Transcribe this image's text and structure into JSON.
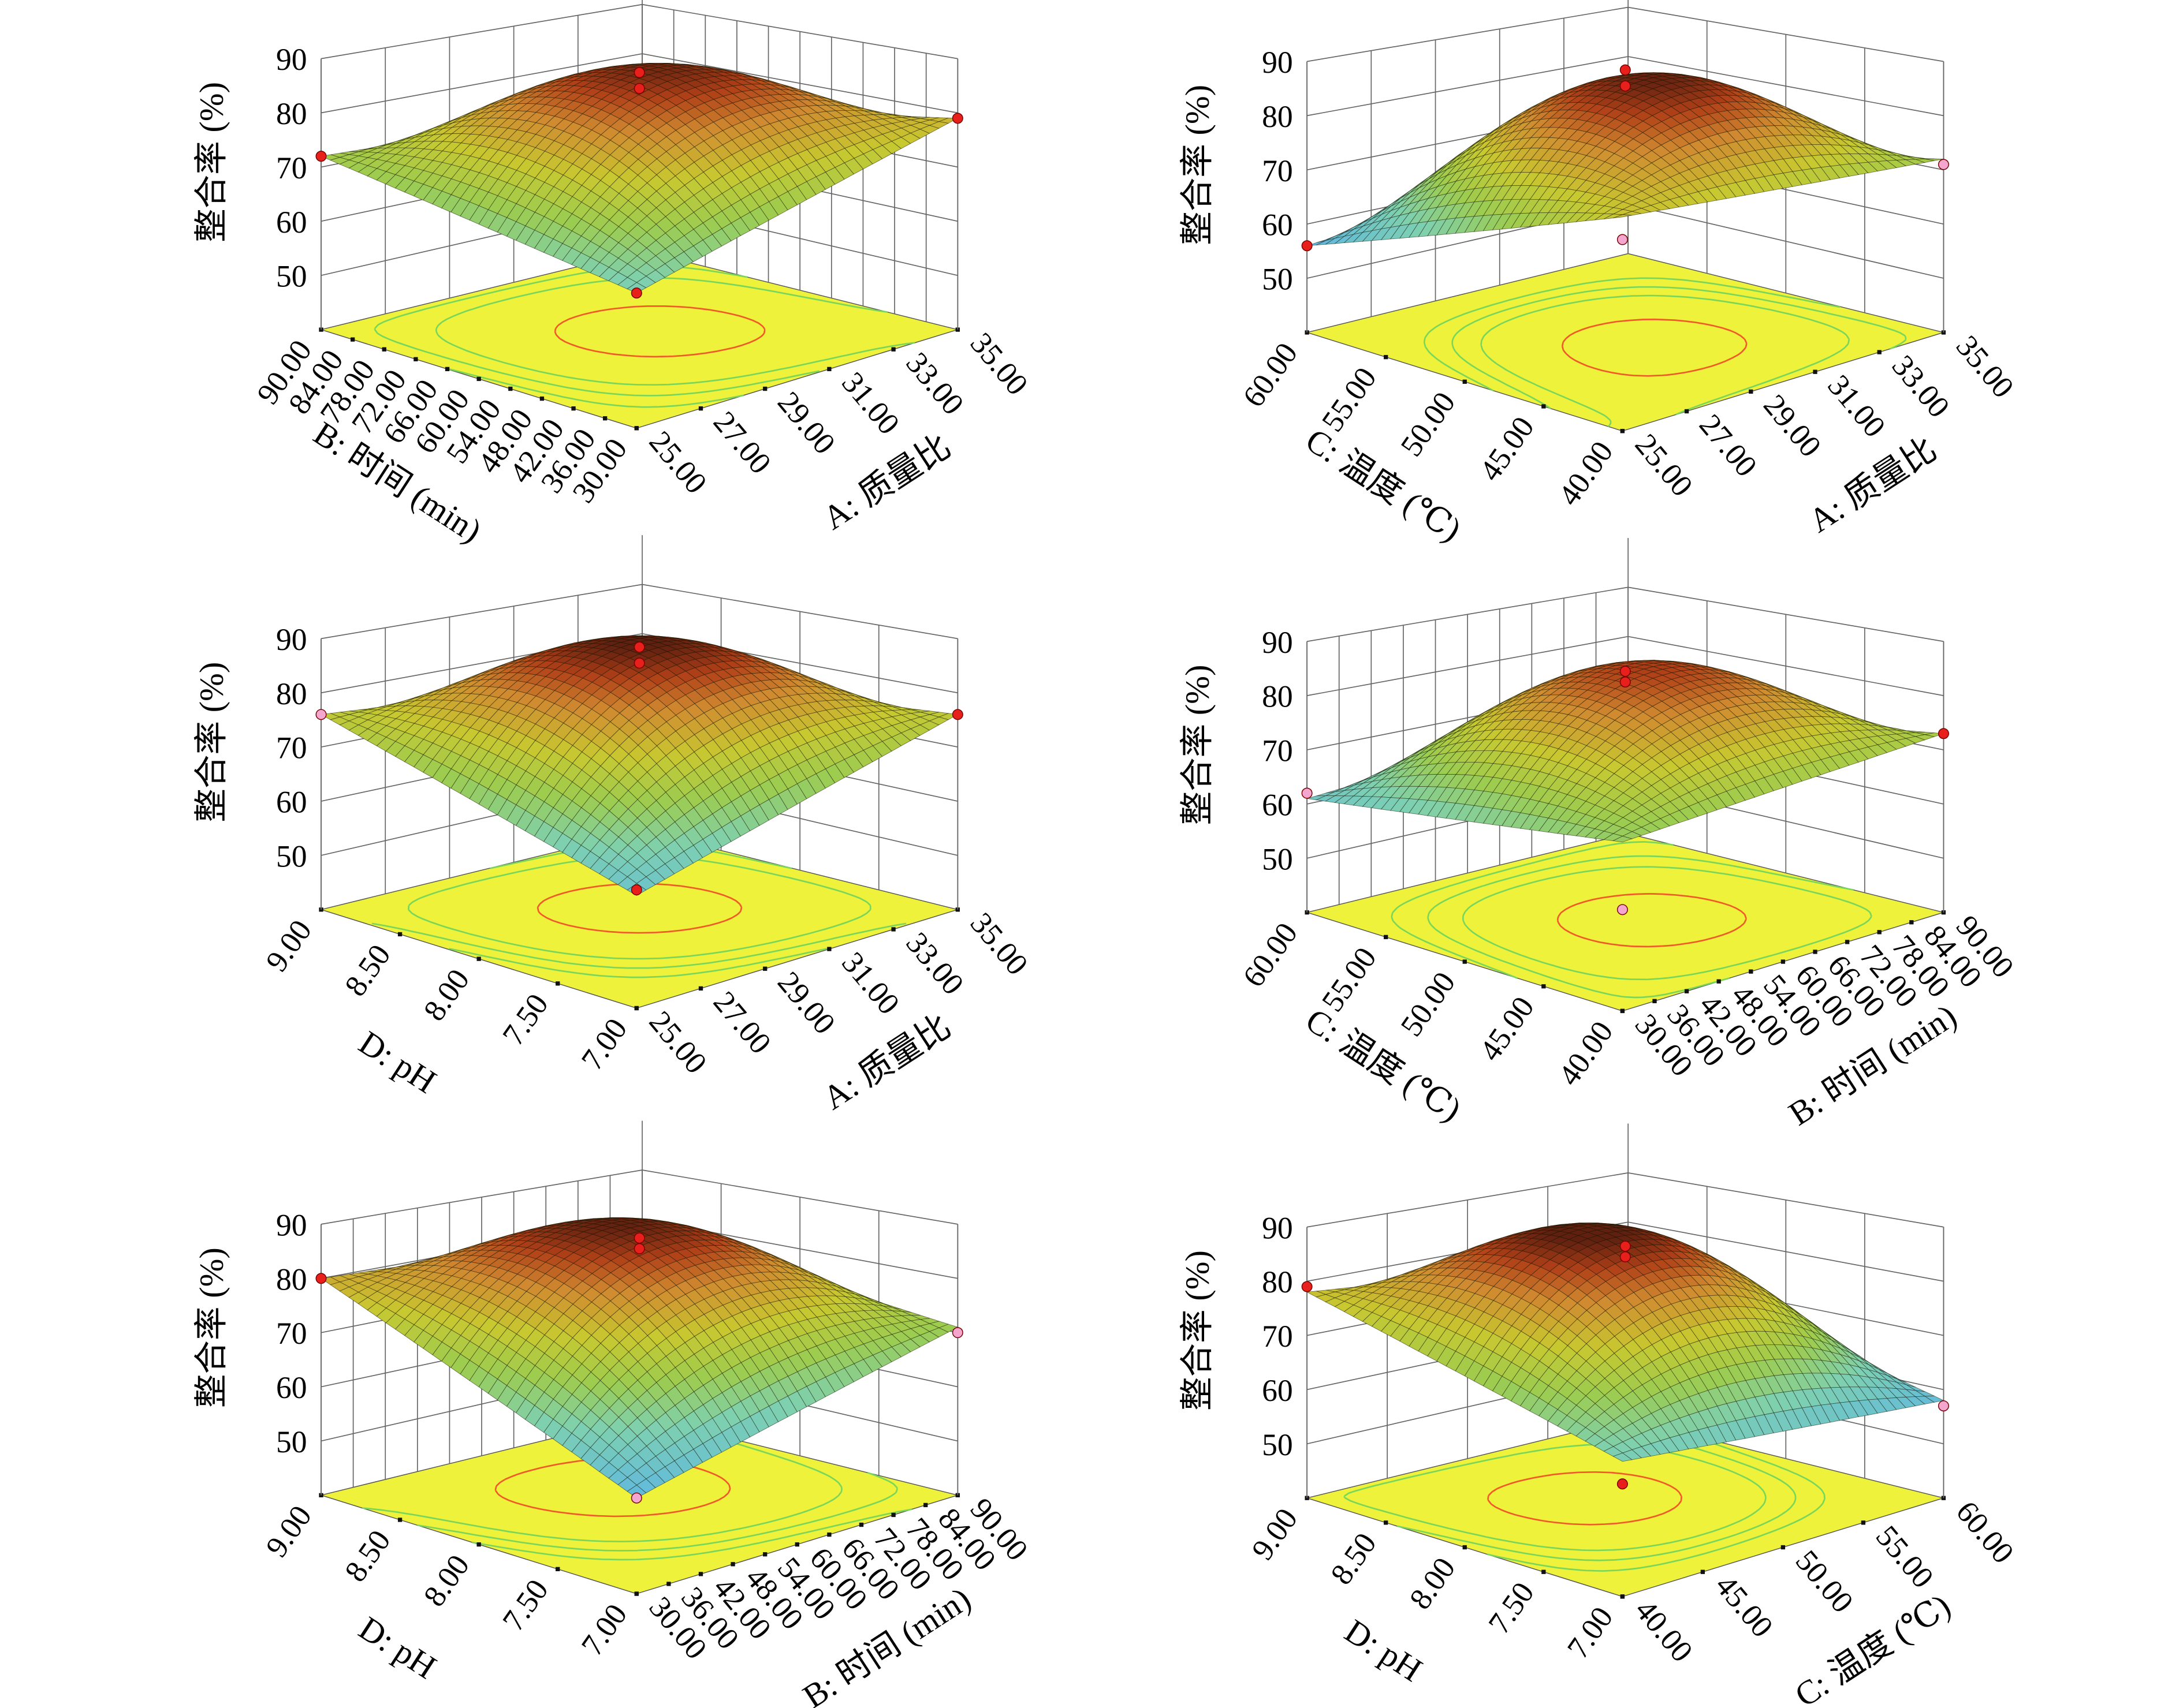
{
  "z_axis": {
    "label": "整合率 (%)",
    "ticks": [
      "50",
      "60",
      "70",
      "80",
      "90"
    ],
    "range": [
      40,
      90
    ]
  },
  "colors": {
    "floor": "#eef23a",
    "contour_high": "#f05a28",
    "contour_low": "#7ad65a",
    "point_above": "#e8201c",
    "point_below": "#f4a6cf",
    "surface_low": "#5ab4e8",
    "surface_mid": "#c8c830",
    "surface_high": "#602010"
  },
  "chart_data": [
    {
      "type": "surface",
      "left_axis": {
        "label": "B: 时间 (min)",
        "range": [
          30,
          90
        ],
        "ticks": [
          "30.00",
          "36.00",
          "42.00",
          "48.00",
          "54.00",
          "60.00",
          "66.00",
          "72.00",
          "78.00",
          "84.00",
          "90.00"
        ]
      },
      "right_axis": {
        "label": "A: 质量比",
        "range": [
          25,
          35
        ],
        "ticks": [
          "25.00",
          "27.00",
          "29.00",
          "31.00",
          "33.00",
          "35.00"
        ]
      },
      "corner_values": [
        [
          64,
          79
        ],
        [
          72,
          70
        ]
      ],
      "center_value": 89,
      "design_points": [
        [
          60,
          30,
          89,
          "above"
        ],
        [
          60,
          30,
          86,
          "above"
        ],
        [
          90,
          25,
          72,
          "above"
        ],
        [
          30,
          35,
          79,
          "above"
        ],
        [
          30,
          25,
          64,
          "above"
        ]
      ]
    },
    {
      "type": "surface",
      "left_axis": {
        "label": "C: 温度 (℃)",
        "range": [
          40,
          60
        ],
        "ticks": [
          "40.00",
          "45.00",
          "50.00",
          "55.00",
          "60.00"
        ]
      },
      "right_axis": {
        "label": "A: 质量比",
        "range": [
          25,
          35
        ],
        "ticks": [
          "25.00",
          "27.00",
          "29.00",
          "31.00",
          "33.00",
          "35.00"
        ]
      },
      "corner_values": [
        [
          78,
          72
        ],
        [
          56,
          62
        ]
      ],
      "center_value": 89,
      "design_points": [
        [
          50,
          30,
          90,
          "above"
        ],
        [
          50,
          30,
          87,
          "above"
        ],
        [
          60,
          25,
          56,
          "above"
        ],
        [
          40,
          35,
          71,
          "below"
        ],
        [
          40,
          25,
          74,
          "below"
        ]
      ]
    },
    {
      "type": "surface",
      "left_axis": {
        "label": "D: pH",
        "range": [
          7,
          9
        ],
        "ticks": [
          "7.00",
          "7.50",
          "8.00",
          "8.50",
          "9.00"
        ]
      },
      "right_axis": {
        "label": "A: 质量比",
        "range": [
          25,
          35
        ],
        "ticks": [
          "25.00",
          "27.00",
          "29.00",
          "31.00",
          "33.00",
          "35.00"
        ]
      },
      "corner_values": [
        [
          60,
          76
        ],
        [
          76,
          72
        ]
      ],
      "center_value": 90,
      "design_points": [
        [
          8,
          30,
          90,
          "above"
        ],
        [
          8,
          30,
          87,
          "above"
        ],
        [
          9,
          25,
          76,
          "below"
        ],
        [
          7,
          35,
          76,
          "above"
        ],
        [
          7,
          25,
          61,
          "above"
        ]
      ]
    },
    {
      "type": "surface",
      "left_axis": {
        "label": "C: 温度 (℃)",
        "range": [
          40,
          60
        ],
        "ticks": [
          "40.00",
          "45.00",
          "50.00",
          "55.00",
          "60.00"
        ]
      },
      "right_axis": {
        "label": "B: 时间 (min)",
        "range": [
          30,
          90
        ],
        "ticks": [
          "30.00",
          "36.00",
          "42.00",
          "48.00",
          "54.00",
          "60.00",
          "66.00",
          "72.00",
          "78.00",
          "84.00",
          "90.00"
        ]
      },
      "corner_values": [
        [
          70,
          73
        ],
        [
          61,
          66
        ]
      ],
      "center_value": 87,
      "design_points": [
        [
          50,
          60,
          86,
          "above"
        ],
        [
          50,
          60,
          84,
          "above"
        ],
        [
          60,
          30,
          62,
          "below"
        ],
        [
          40,
          90,
          73,
          "above"
        ],
        [
          40,
          30,
          58,
          "below"
        ]
      ]
    },
    {
      "type": "surface",
      "left_axis": {
        "label": "D: pH",
        "range": [
          7,
          9
        ],
        "ticks": [
          "7.00",
          "7.50",
          "8.00",
          "8.50",
          "9.00"
        ]
      },
      "right_axis": {
        "label": "B: 时间 (min)",
        "range": [
          30,
          90
        ],
        "ticks": [
          "30.00",
          "36.00",
          "42.00",
          "48.00",
          "54.00",
          "60.00",
          "66.00",
          "72.00",
          "78.00",
          "84.00",
          "90.00"
        ]
      },
      "corner_values": [
        [
          57,
          71
        ],
        [
          80,
          78
        ]
      ],
      "center_value": 89,
      "design_points": [
        [
          8,
          60,
          89,
          "above"
        ],
        [
          8,
          60,
          87,
          "above"
        ],
        [
          9,
          30,
          80,
          "above"
        ],
        [
          7,
          90,
          70,
          "below"
        ],
        [
          7,
          30,
          57,
          "below"
        ]
      ]
    },
    {
      "type": "surface",
      "left_axis": {
        "label": "D: pH",
        "range": [
          7,
          9
        ],
        "ticks": [
          "7.00",
          "7.50",
          "8.00",
          "8.50",
          "9.00"
        ]
      },
      "right_axis": {
        "label": "C: 温度 (℃)",
        "range": [
          40,
          60
        ],
        "ticks": [
          "40.00",
          "45.00",
          "50.00",
          "55.00",
          "60.00"
        ]
      },
      "corner_values": [
        [
          64,
          58
        ],
        [
          78,
          73
        ]
      ],
      "center_value": 90,
      "design_points": [
        [
          8,
          50,
          88,
          "above"
        ],
        [
          8,
          50,
          86,
          "above"
        ],
        [
          9,
          40,
          79,
          "above"
        ],
        [
          7,
          60,
          57,
          "below"
        ],
        [
          7,
          40,
          60,
          "above"
        ]
      ]
    }
  ]
}
